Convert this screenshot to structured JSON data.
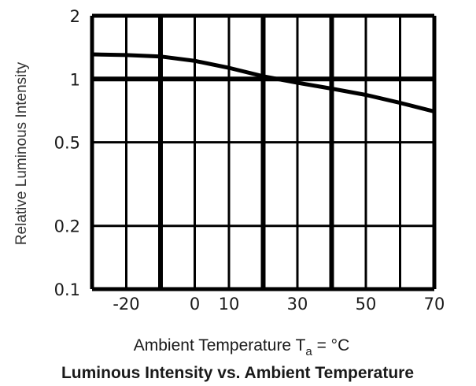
{
  "chart_data": {
    "type": "line",
    "title": "Luminous Intensity vs. Ambient Temperature",
    "xlabel": {
      "prefix": "Ambient Temperature T",
      "subscript": "a",
      "suffix": " = °C"
    },
    "ylabel": "Relative Luminous Intensity",
    "xlim": [
      -30,
      70
    ],
    "ylim": [
      0.1,
      2
    ],
    "y_scale": "log",
    "x_tick_labels": [
      "-20",
      "0",
      "10",
      "30",
      "50",
      "70"
    ],
    "x_tick_values": [
      -20,
      0,
      10,
      30,
      50,
      70
    ],
    "y_tick_labels": [
      "2",
      "1",
      "0.5",
      "0.2",
      "0.1"
    ],
    "y_tick_values": [
      2,
      1,
      0.5,
      0.2,
      0.1
    ],
    "x_grid": [
      -30,
      -20,
      -10,
      0,
      10,
      20,
      30,
      40,
      50,
      60,
      70
    ],
    "x_grid_heavy": [
      -10,
      20,
      40
    ],
    "y_grid": [
      2,
      1,
      0.5,
      0.2,
      0.1
    ],
    "y_grid_heavy": [
      1
    ],
    "grid": true,
    "series": [
      {
        "x": [
          -30,
          -20,
          -10,
          0,
          10,
          20,
          30,
          40,
          50,
          60,
          70
        ],
        "y": [
          1.31,
          1.3,
          1.28,
          1.22,
          1.13,
          1.03,
          0.96,
          0.9,
          0.84,
          0.77,
          0.7
        ]
      }
    ],
    "colors": {
      "line": "#000000",
      "grid": "#000000",
      "text": "#1a1a1a"
    }
  }
}
